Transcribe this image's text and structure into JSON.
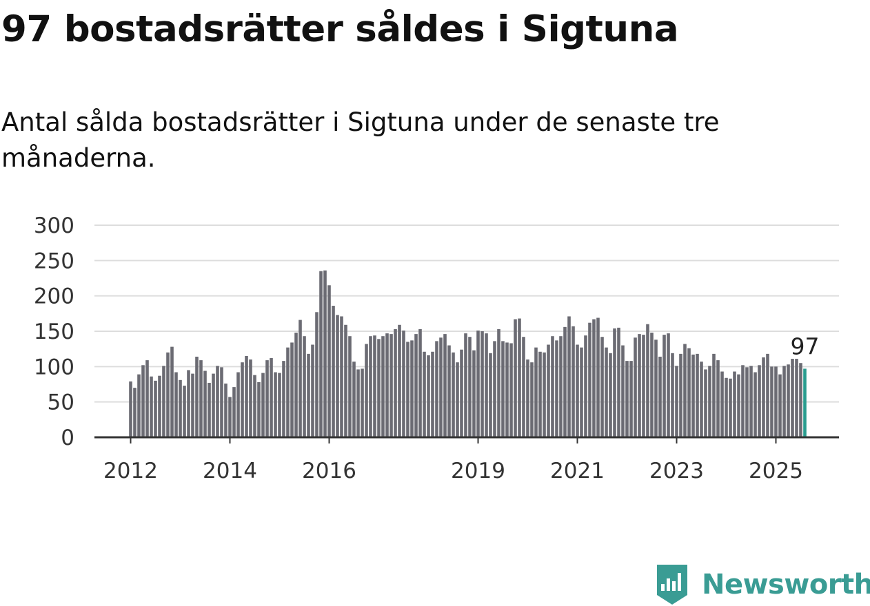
{
  "title": "97 bostadsrätter såldes i Sigtuna",
  "subtitle": "Antal sålda bostadsrätter i Sigtuna under de senaste tre månaderna.",
  "brand": {
    "name": "Newsworthy",
    "color": "#3a9c94"
  },
  "chart_data": {
    "type": "bar",
    "x_start": "2012-01",
    "x_tick_labels": [
      "2012",
      "2014",
      "2016",
      "2019",
      "2021",
      "2023",
      "2025"
    ],
    "y_ticks": [
      0,
      50,
      100,
      150,
      200,
      250,
      300
    ],
    "ylim": [
      0,
      300
    ],
    "grid": true,
    "bar_color": "#6b6b73",
    "highlight_color": "#2a9d8f",
    "highlight_label": "97",
    "values": [
      79,
      70,
      89,
      102,
      109,
      86,
      80,
      87,
      101,
      120,
      128,
      92,
      81,
      73,
      95,
      90,
      114,
      109,
      94,
      77,
      90,
      101,
      99,
      76,
      57,
      71,
      92,
      106,
      115,
      110,
      88,
      78,
      91,
      109,
      112,
      92,
      91,
      108,
      127,
      134,
      148,
      166,
      143,
      118,
      131,
      177,
      235,
      236,
      215,
      186,
      173,
      171,
      159,
      143,
      107,
      96,
      97,
      132,
      143,
      144,
      139,
      143,
      147,
      146,
      153,
      159,
      151,
      135,
      137,
      146,
      153,
      121,
      116,
      121,
      136,
      141,
      146,
      130,
      120,
      106,
      124,
      147,
      142,
      123,
      151,
      150,
      147,
      119,
      136,
      153,
      136,
      134,
      133,
      167,
      168,
      142,
      110,
      106,
      127,
      121,
      120,
      131,
      143,
      137,
      143,
      156,
      171,
      157,
      131,
      127,
      144,
      162,
      167,
      169,
      142,
      127,
      119,
      154,
      155,
      130,
      108,
      108,
      141,
      146,
      145,
      160,
      148,
      138,
      114,
      145,
      147,
      119,
      101,
      118,
      132,
      126,
      117,
      118,
      107,
      96,
      101,
      118,
      109,
      93,
      84,
      83,
      93,
      89,
      102,
      99,
      101,
      92,
      102,
      113,
      118,
      100,
      100,
      89,
      101,
      103,
      111,
      111,
      105,
      97
    ]
  }
}
